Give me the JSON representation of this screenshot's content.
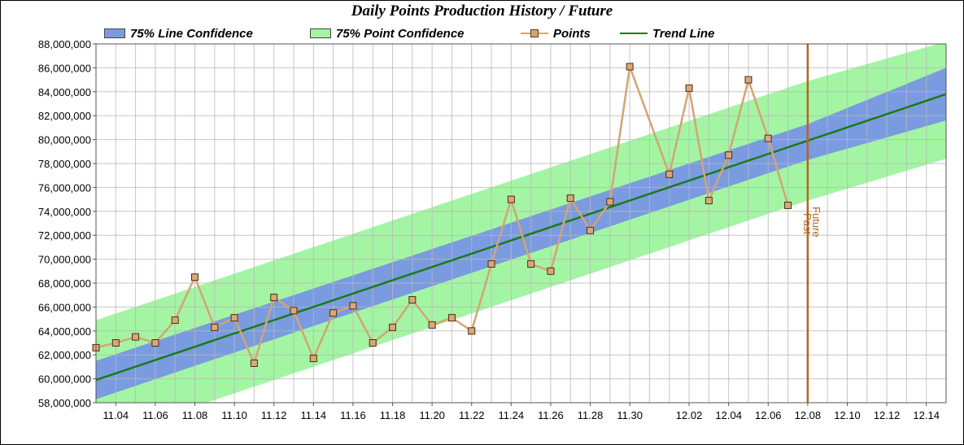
{
  "chart_data": {
    "type": "line",
    "title": "Daily Points Production History / Future",
    "legend": [
      {
        "name": "75% Line Confidence",
        "kind": "band",
        "color": "#7a9be0"
      },
      {
        "name": "75% Point Confidence",
        "kind": "band",
        "color": "#a3f5a3"
      },
      {
        "name": "Points",
        "kind": "line-marker",
        "color": "#d4a474"
      },
      {
        "name": "Trend Line",
        "kind": "line",
        "color": "#1a7a1a"
      }
    ],
    "legend_position": "top",
    "ylim": [
      58000000,
      88000000
    ],
    "y_ticks": [
      "58,000,000",
      "60,000,000",
      "62,000,000",
      "64,000,000",
      "66,000,000",
      "68,000,000",
      "70,000,000",
      "72,000,000",
      "74,000,000",
      "76,000,000",
      "78,000,000",
      "80,000,000",
      "82,000,000",
      "84,000,000",
      "86,000,000",
      "88,000,000"
    ],
    "x_ticks": [
      "11.04",
      "11.06",
      "11.08",
      "11.10",
      "11.12",
      "11.14",
      "11.16",
      "11.18",
      "11.20",
      "11.22",
      "11.24",
      "11.26",
      "11.28",
      "11.30",
      "12.02",
      "12.04",
      "12.06",
      "12.08",
      "12.10",
      "12.12",
      "12.14"
    ],
    "x_range_days": [
      "11.03",
      "12.15"
    ],
    "grid": true,
    "series": [
      {
        "name": "Points",
        "x": [
          "11.03",
          "11.04",
          "11.05",
          "11.06",
          "11.07",
          "11.08",
          "11.09",
          "11.10",
          "11.11",
          "11.12",
          "11.13",
          "11.14",
          "11.15",
          "11.16",
          "11.17",
          "11.18",
          "11.19",
          "11.20",
          "11.21",
          "11.22",
          "11.23",
          "11.24",
          "11.25",
          "11.26",
          "11.27",
          "11.28",
          "11.29",
          "11.30",
          "12.01",
          "12.02",
          "12.03",
          "12.04",
          "12.05",
          "12.06",
          "12.07"
        ],
        "values": [
          62600000,
          63000000,
          63500000,
          63000000,
          64900000,
          68500000,
          64300000,
          65100000,
          61300000,
          66800000,
          65700000,
          61700000,
          65500000,
          66100000,
          63000000,
          64300000,
          66600000,
          64500000,
          65100000,
          64000000,
          69600000,
          75000000,
          69600000,
          69000000,
          75100000,
          72400000,
          74800000,
          86100000,
          77100000,
          84300000,
          74900000,
          78700000,
          85000000,
          80100000,
          74500000
        ]
      },
      {
        "name": "Trend Line",
        "x": [
          "11.03",
          "12.15"
        ],
        "values": [
          59900000,
          83800000
        ]
      }
    ],
    "bands": [
      {
        "name": "75% Line Confidence",
        "x": [
          "11.03",
          "12.08",
          "12.15"
        ],
        "upper": [
          61500000,
          81300000,
          86000000
        ],
        "lower": [
          58300000,
          78300000,
          81600000
        ]
      },
      {
        "name": "75% Point Confidence",
        "x": [
          "11.03",
          "12.08",
          "12.15"
        ],
        "upper": [
          64900000,
          84900000,
          88200000
        ],
        "lower": [
          54900000,
          74900000,
          78400000
        ]
      }
    ],
    "annotations": {
      "divider_x": "12.08",
      "divider_color": "#b5651d",
      "past_label": "Past",
      "future_label": "Future"
    }
  }
}
